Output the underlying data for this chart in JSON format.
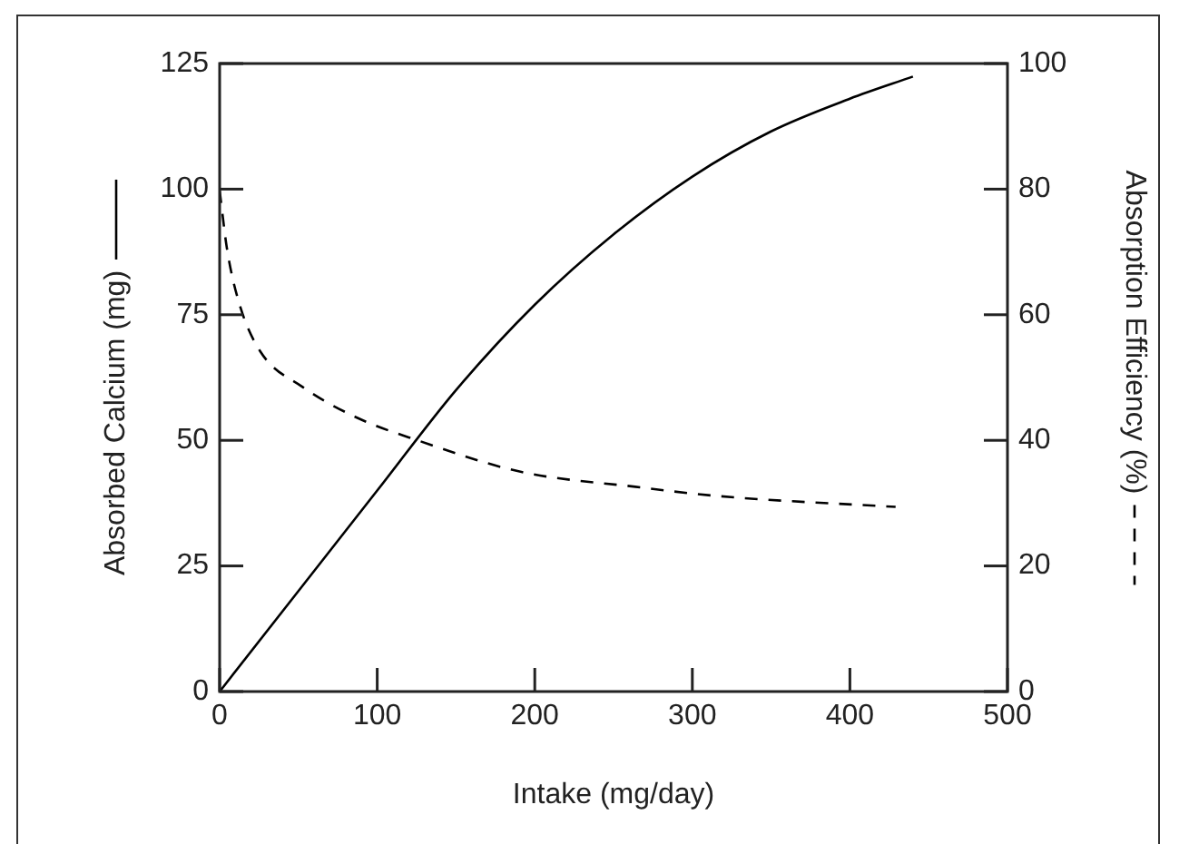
{
  "chart_data": {
    "type": "line",
    "xlabel": "Intake (mg/day)",
    "ylabel": "Absorbed Calcium (mg)",
    "y2label": "Absorption Efficiency (%)",
    "xlim": [
      0,
      500
    ],
    "xticks": [
      0,
      100,
      200,
      300,
      400,
      500
    ],
    "ylim": [
      0,
      125
    ],
    "yticks": [
      0,
      25,
      50,
      75,
      100,
      125
    ],
    "y2lim": [
      0,
      100
    ],
    "y2ticks": [
      0,
      20,
      40,
      60,
      80,
      100
    ],
    "grid": false,
    "legend": false,
    "marker": "none",
    "series": [
      {
        "color": "#000000",
        "line_style": "solid",
        "x": [
          0,
          100,
          150,
          200,
          250,
          300,
          350,
          400,
          440
        ],
        "values": [
          0,
          40,
          60,
          77,
          91,
          102.5,
          111.5,
          118,
          122.4
        ]
      },
      {
        "color": "#000000",
        "line_style": "dashed",
        "axis": "y2",
        "x": [
          0,
          4.6,
          12.3,
          25.7,
          52.6,
          87.2,
          125.6,
          190.9,
          263.8,
          317.6,
          429
        ],
        "values": [
          79.8,
          70.6,
          61.9,
          54.2,
          48.5,
          43.6,
          40,
          35,
          32.6,
          31.1,
          29.4
        ]
      }
    ]
  }
}
